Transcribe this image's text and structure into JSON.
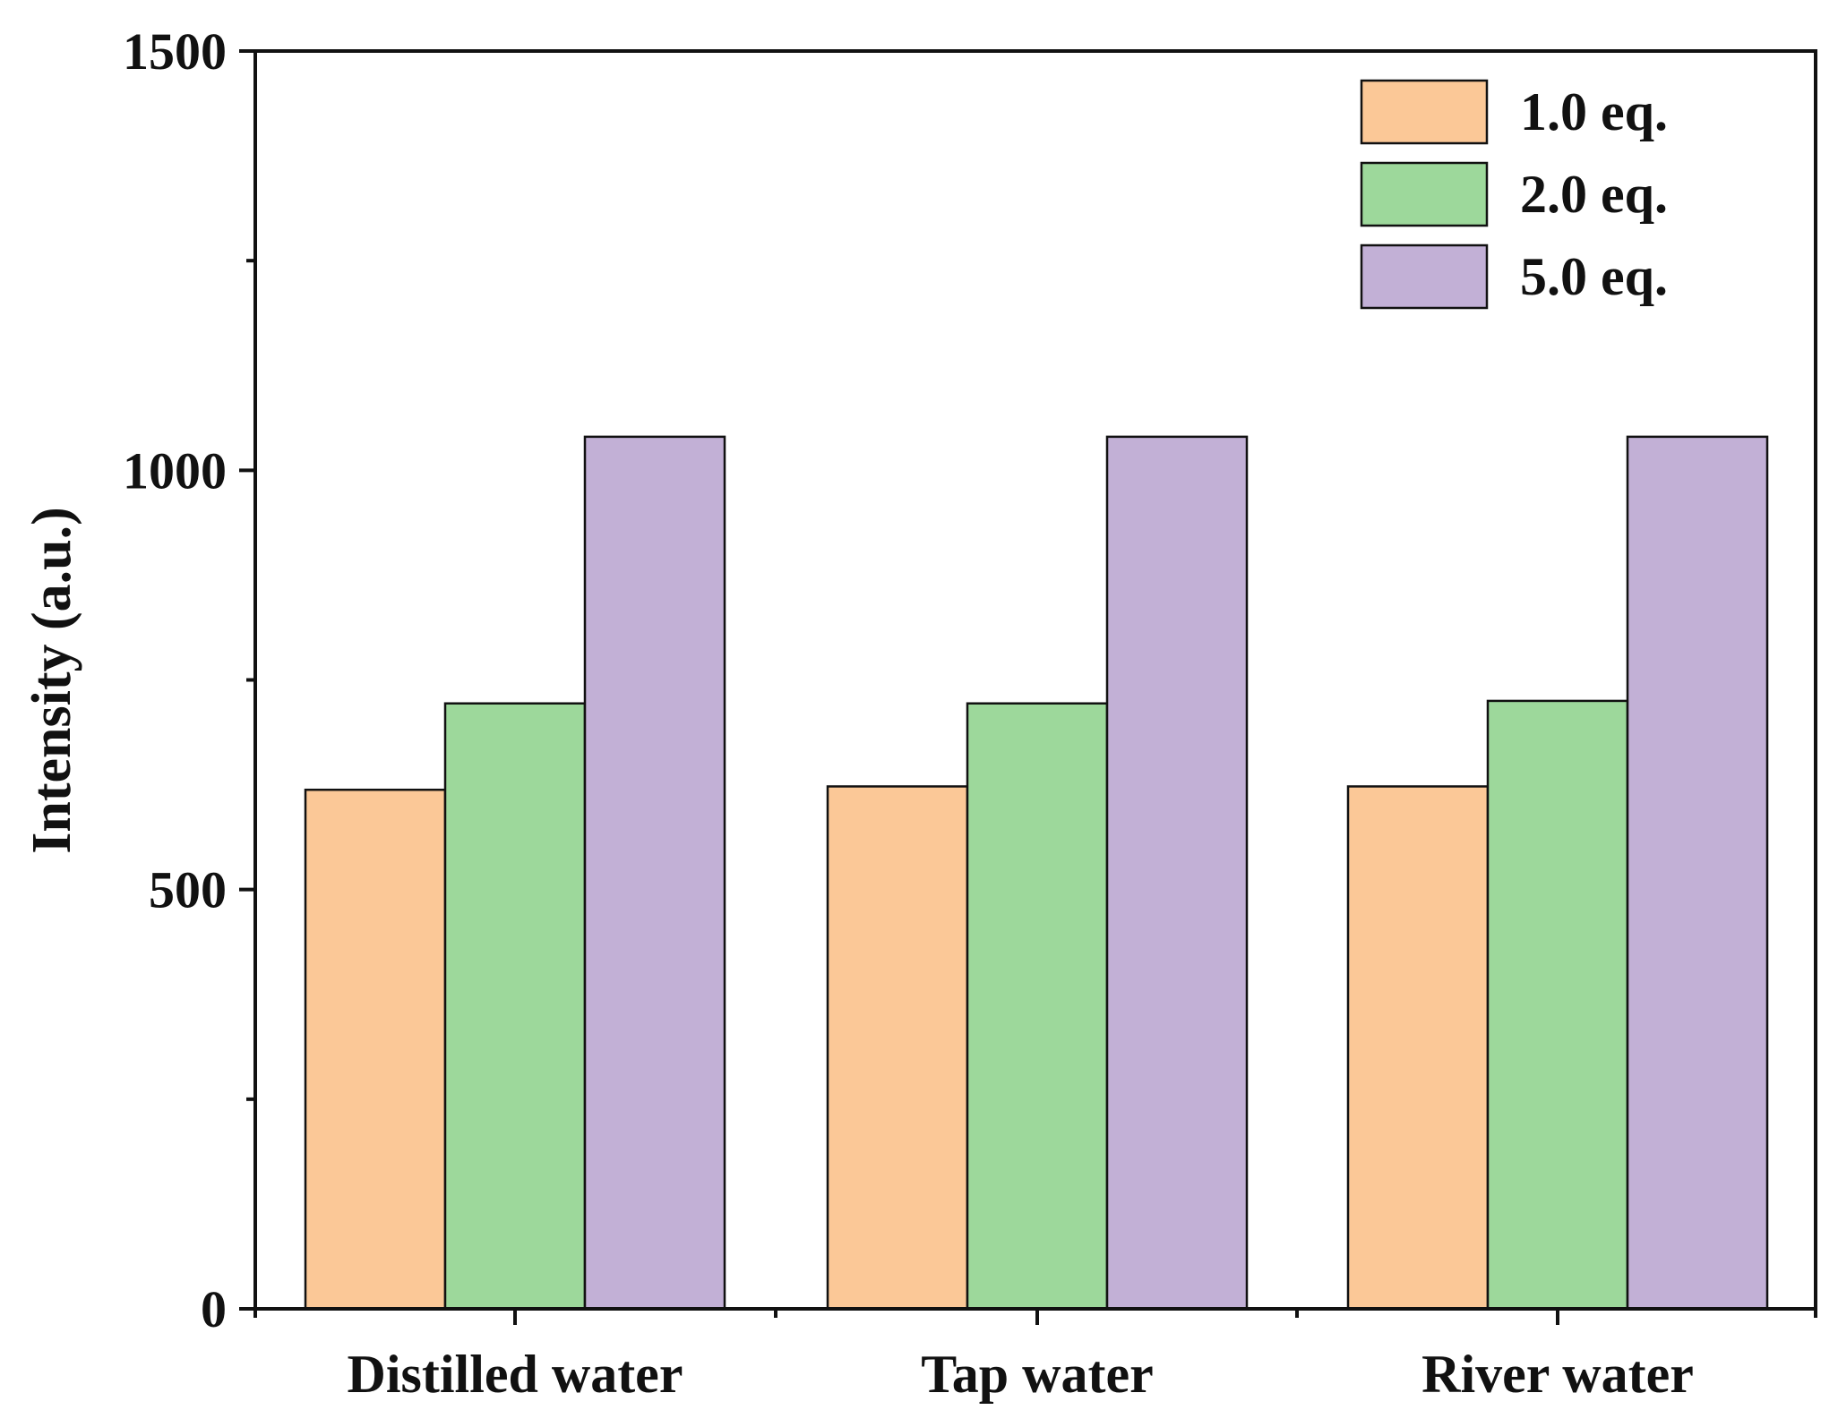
{
  "chart_data": {
    "type": "bar",
    "title": "",
    "xlabel": "",
    "ylabel": "Intensity (a.u.)",
    "ylim": [
      0,
      1500
    ],
    "yticks": [
      0,
      500,
      1000,
      1500
    ],
    "yticks_minor": [
      250,
      750,
      1250
    ],
    "categories": [
      "Distilled water",
      "Tap water",
      "River water"
    ],
    "series": [
      {
        "name": "1.0 eq.",
        "color": "#fbc897",
        "values": [
          619,
          623,
          623
        ]
      },
      {
        "name": "2.0 eq.",
        "color": "#9dd89b",
        "values": [
          722,
          722,
          725
        ]
      },
      {
        "name": "5.0 eq.",
        "color": "#c2b0d6",
        "values": [
          1040,
          1040,
          1040
        ]
      }
    ],
    "legend": "top-right",
    "grid": false
  }
}
